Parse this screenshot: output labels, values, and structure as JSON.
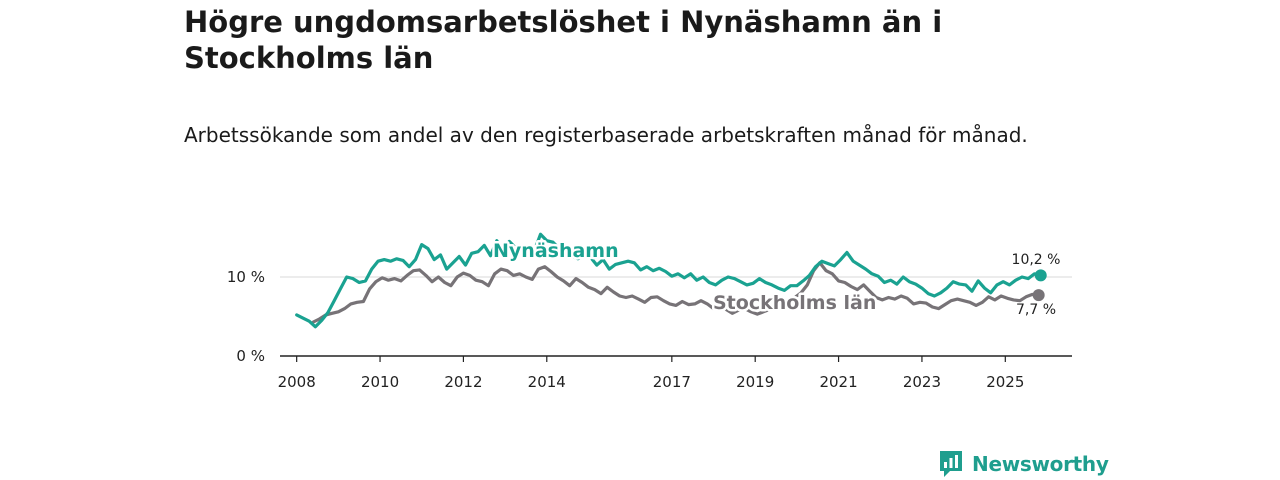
{
  "title": "Högre ungdomsarbetslöshet i Nynäshamn än i Stockholms län",
  "subtitle": "Arbetssökande som andel av den registerbaserade arbetskraften månad för månad.",
  "brand": {
    "name": "Newsworthy",
    "icon": "bar-chart-speech-bubble-icon",
    "color": "#1f9e8e"
  },
  "chart_data": {
    "type": "line",
    "x_ticks": [
      "2008",
      "2010",
      "2012",
      "2014",
      "2017",
      "2019",
      "2021",
      "2023",
      "2025"
    ],
    "y_ticks": [
      "0 %",
      "10 %"
    ],
    "ylim": [
      0,
      15
    ],
    "xlim": [
      2008,
      2026.5
    ],
    "grid": true,
    "series": [
      {
        "name": "Nynäshamn",
        "color": "#1aa291",
        "end_label": "10,2 %",
        "points": [
          [
            2008.0,
            5.2
          ],
          [
            2008.15,
            4.8
          ],
          [
            2008.3,
            4.4
          ],
          [
            2008.45,
            3.7
          ],
          [
            2008.6,
            4.5
          ],
          [
            2008.75,
            5.5
          ],
          [
            2008.9,
            7.0
          ],
          [
            2009.05,
            8.5
          ],
          [
            2009.2,
            10.0
          ],
          [
            2009.35,
            9.8
          ],
          [
            2009.5,
            9.3
          ],
          [
            2009.65,
            9.5
          ],
          [
            2009.8,
            11.0
          ],
          [
            2009.95,
            12.0
          ],
          [
            2010.1,
            12.2
          ],
          [
            2010.25,
            12.0
          ],
          [
            2010.4,
            12.3
          ],
          [
            2010.55,
            12.1
          ],
          [
            2010.7,
            11.3
          ],
          [
            2010.85,
            12.2
          ],
          [
            2011.0,
            14.1
          ],
          [
            2011.15,
            13.6
          ],
          [
            2011.3,
            12.2
          ],
          [
            2011.45,
            12.8
          ],
          [
            2011.6,
            11.0
          ],
          [
            2011.75,
            11.8
          ],
          [
            2011.9,
            12.6
          ],
          [
            2012.05,
            11.5
          ],
          [
            2012.2,
            13.0
          ],
          [
            2012.35,
            13.2
          ],
          [
            2012.5,
            14.0
          ],
          [
            2012.65,
            12.7
          ],
          [
            2012.8,
            14.6
          ],
          [
            2012.95,
            13.3
          ],
          [
            2013.1,
            14.5
          ],
          [
            2013.25,
            13.7
          ],
          [
            2013.4,
            13.4
          ],
          [
            2013.55,
            12.8
          ],
          [
            2013.7,
            13.3
          ],
          [
            2013.85,
            15.4
          ],
          [
            2014.0,
            14.6
          ],
          [
            2014.15,
            14.4
          ],
          [
            2014.3,
            13.6
          ],
          [
            2014.45,
            13.0
          ],
          [
            2014.6,
            12.6
          ],
          [
            2014.75,
            12.3
          ],
          [
            2014.9,
            12.8
          ],
          [
            2015.05,
            12.5
          ],
          [
            2015.2,
            11.5
          ],
          [
            2015.35,
            12.2
          ],
          [
            2015.5,
            11.0
          ],
          [
            2015.65,
            11.6
          ],
          [
            2015.8,
            11.8
          ],
          [
            2015.95,
            12.0
          ],
          [
            2016.1,
            11.8
          ],
          [
            2016.25,
            10.9
          ],
          [
            2016.4,
            11.3
          ],
          [
            2016.55,
            10.8
          ],
          [
            2016.7,
            11.1
          ],
          [
            2016.85,
            10.7
          ],
          [
            2017.0,
            10.1
          ],
          [
            2017.15,
            10.4
          ],
          [
            2017.3,
            9.9
          ],
          [
            2017.45,
            10.4
          ],
          [
            2017.6,
            9.6
          ],
          [
            2017.75,
            10.0
          ],
          [
            2017.9,
            9.3
          ],
          [
            2018.05,
            9.0
          ],
          [
            2018.2,
            9.6
          ],
          [
            2018.35,
            10.0
          ],
          [
            2018.5,
            9.8
          ],
          [
            2018.65,
            9.4
          ],
          [
            2018.8,
            9.0
          ],
          [
            2018.95,
            9.2
          ],
          [
            2019.1,
            9.8
          ],
          [
            2019.25,
            9.3
          ],
          [
            2019.4,
            9.0
          ],
          [
            2019.55,
            8.6
          ],
          [
            2019.7,
            8.3
          ],
          [
            2019.85,
            8.9
          ],
          [
            2020.0,
            8.9
          ],
          [
            2020.15,
            9.5
          ],
          [
            2020.3,
            10.2
          ],
          [
            2020.45,
            11.3
          ],
          [
            2020.6,
            12.0
          ],
          [
            2020.75,
            11.7
          ],
          [
            2020.9,
            11.4
          ],
          [
            2021.05,
            12.2
          ],
          [
            2021.2,
            13.1
          ],
          [
            2021.35,
            12.0
          ],
          [
            2021.5,
            11.5
          ],
          [
            2021.65,
            11.0
          ],
          [
            2021.8,
            10.4
          ],
          [
            2021.95,
            10.1
          ],
          [
            2022.1,
            9.3
          ],
          [
            2022.25,
            9.6
          ],
          [
            2022.4,
            9.1
          ],
          [
            2022.55,
            10.0
          ],
          [
            2022.7,
            9.4
          ],
          [
            2022.85,
            9.1
          ],
          [
            2023.0,
            8.6
          ],
          [
            2023.15,
            7.9
          ],
          [
            2023.3,
            7.6
          ],
          [
            2023.45,
            8.0
          ],
          [
            2023.6,
            8.6
          ],
          [
            2023.75,
            9.4
          ],
          [
            2023.9,
            9.1
          ],
          [
            2024.05,
            9.0
          ],
          [
            2024.2,
            8.2
          ],
          [
            2024.35,
            9.5
          ],
          [
            2024.5,
            8.6
          ],
          [
            2024.65,
            8.0
          ],
          [
            2024.8,
            9.0
          ],
          [
            2024.95,
            9.4
          ],
          [
            2025.1,
            9.0
          ],
          [
            2025.25,
            9.6
          ],
          [
            2025.4,
            10.0
          ],
          [
            2025.55,
            9.8
          ],
          [
            2025.7,
            10.4
          ],
          [
            2025.85,
            10.2
          ]
        ]
      },
      {
        "name": "Stockholms län",
        "color": "#777377",
        "end_label": "7,7 %",
        "points": [
          [
            2008.4,
            4.3
          ],
          [
            2008.55,
            4.7
          ],
          [
            2008.7,
            5.2
          ],
          [
            2008.85,
            5.4
          ],
          [
            2009.0,
            5.6
          ],
          [
            2009.15,
            6.0
          ],
          [
            2009.3,
            6.6
          ],
          [
            2009.45,
            6.8
          ],
          [
            2009.6,
            6.9
          ],
          [
            2009.75,
            8.5
          ],
          [
            2009.9,
            9.4
          ],
          [
            2010.05,
            9.9
          ],
          [
            2010.2,
            9.6
          ],
          [
            2010.35,
            9.8
          ],
          [
            2010.5,
            9.5
          ],
          [
            2010.65,
            10.2
          ],
          [
            2010.8,
            10.8
          ],
          [
            2010.95,
            10.9
          ],
          [
            2011.1,
            10.2
          ],
          [
            2011.25,
            9.4
          ],
          [
            2011.4,
            10.0
          ],
          [
            2011.55,
            9.3
          ],
          [
            2011.7,
            8.9
          ],
          [
            2011.85,
            10.0
          ],
          [
            2012.0,
            10.5
          ],
          [
            2012.15,
            10.2
          ],
          [
            2012.3,
            9.6
          ],
          [
            2012.45,
            9.4
          ],
          [
            2012.6,
            8.9
          ],
          [
            2012.75,
            10.4
          ],
          [
            2012.9,
            11.0
          ],
          [
            2013.05,
            10.8
          ],
          [
            2013.2,
            10.2
          ],
          [
            2013.35,
            10.4
          ],
          [
            2013.5,
            10.0
          ],
          [
            2013.65,
            9.7
          ],
          [
            2013.8,
            11.0
          ],
          [
            2013.95,
            11.3
          ],
          [
            2014.1,
            10.7
          ],
          [
            2014.25,
            10.0
          ],
          [
            2014.4,
            9.5
          ],
          [
            2014.55,
            8.9
          ],
          [
            2014.7,
            9.8
          ],
          [
            2014.85,
            9.3
          ],
          [
            2015.0,
            8.7
          ],
          [
            2015.15,
            8.4
          ],
          [
            2015.3,
            7.9
          ],
          [
            2015.45,
            8.7
          ],
          [
            2015.6,
            8.1
          ],
          [
            2015.75,
            7.6
          ],
          [
            2015.9,
            7.4
          ],
          [
            2016.05,
            7.6
          ],
          [
            2016.2,
            7.2
          ],
          [
            2016.35,
            6.8
          ],
          [
            2016.5,
            7.4
          ],
          [
            2016.65,
            7.5
          ],
          [
            2016.8,
            7.0
          ],
          [
            2016.95,
            6.6
          ],
          [
            2017.1,
            6.4
          ],
          [
            2017.25,
            6.9
          ],
          [
            2017.4,
            6.5
          ],
          [
            2017.55,
            6.6
          ],
          [
            2017.7,
            7.0
          ],
          [
            2017.85,
            6.6
          ],
          [
            2018.0,
            6.0
          ],
          [
            2018.15,
            6.3
          ],
          [
            2018.3,
            5.9
          ],
          [
            2018.45,
            5.4
          ],
          [
            2018.6,
            5.8
          ],
          [
            2018.75,
            6.0
          ],
          [
            2018.9,
            5.6
          ],
          [
            2019.05,
            5.3
          ],
          [
            2019.2,
            5.6
          ],
          [
            2019.35,
            5.9
          ],
          [
            2019.5,
            6.5
          ],
          [
            2019.65,
            6.8
          ],
          [
            2019.8,
            7.1
          ],
          [
            2019.95,
            7.4
          ],
          [
            2020.1,
            8.0
          ],
          [
            2020.25,
            9.0
          ],
          [
            2020.4,
            10.8
          ],
          [
            2020.55,
            11.8
          ],
          [
            2020.7,
            10.8
          ],
          [
            2020.85,
            10.4
          ],
          [
            2021.0,
            9.5
          ],
          [
            2021.15,
            9.3
          ],
          [
            2021.3,
            8.8
          ],
          [
            2021.45,
            8.4
          ],
          [
            2021.6,
            9.0
          ],
          [
            2021.75,
            8.2
          ],
          [
            2021.9,
            7.4
          ],
          [
            2022.05,
            7.1
          ],
          [
            2022.2,
            7.4
          ],
          [
            2022.35,
            7.2
          ],
          [
            2022.5,
            7.6
          ],
          [
            2022.65,
            7.3
          ],
          [
            2022.8,
            6.6
          ],
          [
            2022.95,
            6.8
          ],
          [
            2023.1,
            6.7
          ],
          [
            2023.25,
            6.2
          ],
          [
            2023.4,
            6.0
          ],
          [
            2023.55,
            6.5
          ],
          [
            2023.7,
            7.0
          ],
          [
            2023.85,
            7.2
          ],
          [
            2024.0,
            7.0
          ],
          [
            2024.15,
            6.8
          ],
          [
            2024.3,
            6.4
          ],
          [
            2024.45,
            6.8
          ],
          [
            2024.6,
            7.5
          ],
          [
            2024.75,
            7.1
          ],
          [
            2024.9,
            7.6
          ],
          [
            2025.05,
            7.3
          ],
          [
            2025.2,
            7.1
          ],
          [
            2025.35,
            7.0
          ],
          [
            2025.5,
            7.5
          ],
          [
            2025.65,
            7.8
          ],
          [
            2025.8,
            7.7
          ]
        ]
      }
    ]
  }
}
